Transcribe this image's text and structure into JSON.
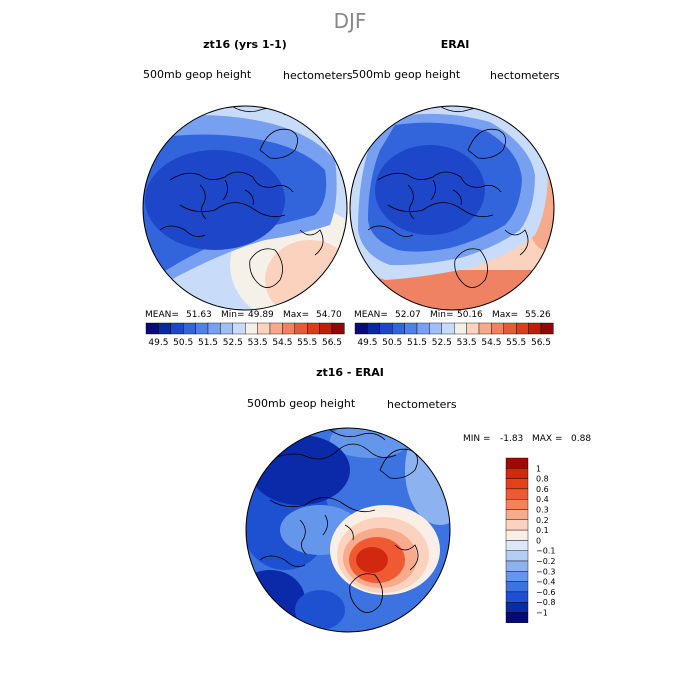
{
  "figure": {
    "title": "DJF"
  },
  "panels": [
    {
      "title": "zt16 (yrs 1-1)",
      "variable": "500mb geop height",
      "units": "hectometers",
      "stats": {
        "mean_label": "MEAN=",
        "mean": "51.63",
        "min_label": "Min=",
        "min": "49.89",
        "max_label": "Max=",
        "max": "54.70"
      }
    },
    {
      "title": "ERAI",
      "variable": "500mb geop height",
      "units": "hectometers",
      "stats": {
        "mean_label": "MEAN=",
        "mean": "52.07",
        "min_label": "Min=",
        "min": "50.16",
        "max_label": "Max=",
        "max": "55.26"
      }
    },
    {
      "title": "zt16 - ERAI",
      "variable": "500mb geop height",
      "units": "hectometers",
      "stats": {
        "min_label": "MIN =",
        "min": "-1.83",
        "max_label": "MAX =",
        "max": "0.88"
      }
    }
  ],
  "colorbar_abs": {
    "labels": [
      "49.5",
      "50.5",
      "51.5",
      "52.5",
      "53.5",
      "54.5",
      "55.5",
      "56.5"
    ],
    "colors": [
      "#0a0a78",
      "#0a28a0",
      "#1e46c8",
      "#3264dc",
      "#5082e6",
      "#78a0f0",
      "#a0c0f5",
      "#c8dcfa",
      "#f5f0e8",
      "#fad2be",
      "#f5aa8c",
      "#f08264",
      "#e65a3c",
      "#dc3c1e",
      "#be1e0a",
      "#8c0a05"
    ]
  },
  "colorbar_diff": {
    "labels": [
      "1",
      "0.8",
      "0.6",
      "0.4",
      "0.3",
      "0.2",
      "0.1",
      "0",
      "−0.1",
      "−0.2",
      "−0.3",
      "−0.4",
      "−0.6",
      "−0.8",
      "−1"
    ],
    "colors": [
      "#a00a05",
      "#d2280f",
      "#e64119",
      "#f05a32",
      "#f5825a",
      "#f8aa8c",
      "#fad2be",
      "#fbeee6",
      "#dce8fa",
      "#b4cdf5",
      "#8cb2f0",
      "#6496eb",
      "#3c73e1",
      "#1e50d2",
      "#0a2aaa",
      "#050a78"
    ]
  },
  "map_colors": {
    "deep_blue": "#1e46c8",
    "mid_blue": "#3264dc",
    "light_blue": "#78a0f0",
    "pale_blue": "#c8dcfa",
    "cream": "#f5f0e8",
    "peach": "#fad2be",
    "salmon": "#f5aa8c",
    "orange": "#f08264",
    "red": "#e65a3c",
    "dark_red": "#be1e0a"
  }
}
